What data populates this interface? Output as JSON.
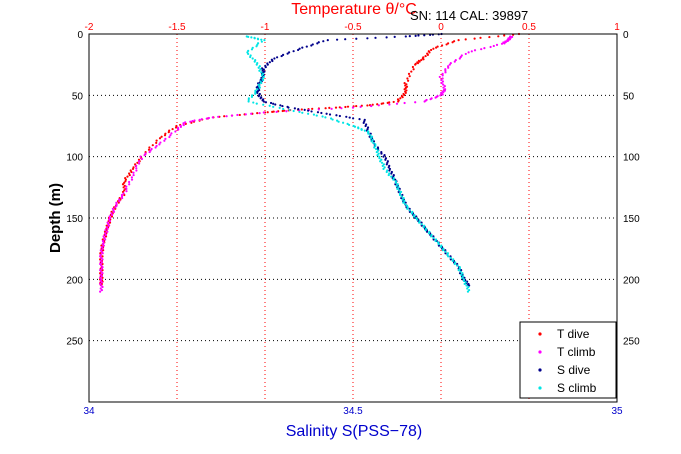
{
  "chart_data": {
    "type": "scatter",
    "top_axis": {
      "label": "Temperature θ/°C",
      "ticks": [
        "-2",
        "-1.5",
        "-1",
        "-0.5",
        "0",
        "0.5",
        "1"
      ],
      "range": [
        -2,
        1
      ],
      "color": "#ff0000"
    },
    "bottom_axis": {
      "label": "Salinity S(PSS−78)",
      "ticks": [
        "34",
        "34.5",
        "35"
      ],
      "range": [
        34,
        35
      ],
      "color": "#0000cc"
    },
    "y_axis": {
      "label": "Depth (m)",
      "ticks": [
        "0",
        "50",
        "100",
        "150",
        "200",
        "250"
      ],
      "range": [
        0,
        300
      ],
      "reversed": true
    },
    "info_text": "SN: 114  CAL: 39897",
    "grid": true,
    "legend_position": "bottom-right",
    "series": [
      {
        "name": "T dive",
        "axis": "temperature",
        "color": "#ff0000",
        "points": [
          [
            0.45,
            0
          ],
          [
            0.1,
            5
          ],
          [
            -0.05,
            12
          ],
          [
            -0.1,
            20
          ],
          [
            -0.15,
            25
          ],
          [
            -0.2,
            40
          ],
          [
            -0.2,
            48
          ],
          [
            -0.25,
            55
          ],
          [
            -0.4,
            58
          ],
          [
            -0.6,
            60
          ],
          [
            -0.85,
            62
          ],
          [
            -1.0,
            64
          ],
          [
            -1.3,
            68
          ],
          [
            -1.5,
            75
          ],
          [
            -1.6,
            85
          ],
          [
            -1.7,
            100
          ],
          [
            -1.75,
            110
          ],
          [
            -1.8,
            120
          ],
          [
            -1.8,
            130
          ],
          [
            -1.85,
            140
          ],
          [
            -1.88,
            150
          ],
          [
            -1.9,
            160
          ],
          [
            -1.92,
            170
          ],
          [
            -1.93,
            180
          ],
          [
            -1.93,
            190
          ],
          [
            -1.93,
            200
          ],
          [
            -1.93,
            205
          ]
        ]
      },
      {
        "name": "T climb",
        "axis": "temperature",
        "color": "#ff00ff",
        "points": [
          [
            -1.93,
            210
          ],
          [
            -1.93,
            200
          ],
          [
            -1.93,
            190
          ],
          [
            -1.93,
            180
          ],
          [
            -1.92,
            170
          ],
          [
            -1.9,
            160
          ],
          [
            -1.88,
            150
          ],
          [
            -1.85,
            140
          ],
          [
            -1.8,
            130
          ],
          [
            -1.75,
            115
          ],
          [
            -1.7,
            100
          ],
          [
            -1.6,
            90
          ],
          [
            -1.5,
            78
          ],
          [
            -1.45,
            72
          ],
          [
            -1.3,
            68
          ],
          [
            -1.0,
            64
          ],
          [
            -0.5,
            60
          ],
          [
            -0.1,
            55
          ],
          [
            0.0,
            50
          ],
          [
            0.02,
            45
          ],
          [
            0.0,
            35
          ],
          [
            0.05,
            25
          ],
          [
            0.15,
            15
          ],
          [
            0.35,
            8
          ],
          [
            0.38,
            5
          ],
          [
            0.4,
            2
          ]
        ]
      },
      {
        "name": "S dive",
        "axis": "salinity",
        "color": "#00008b",
        "points": [
          [
            34.67,
            0
          ],
          [
            34.6,
            2
          ],
          [
            34.45,
            5
          ],
          [
            34.4,
            12
          ],
          [
            34.35,
            20
          ],
          [
            34.33,
            28
          ],
          [
            34.33,
            35
          ],
          [
            34.32,
            42
          ],
          [
            34.32,
            48
          ],
          [
            34.33,
            55
          ],
          [
            34.38,
            60
          ],
          [
            34.45,
            65
          ],
          [
            34.52,
            70
          ],
          [
            34.53,
            80
          ],
          [
            34.54,
            90
          ],
          [
            34.56,
            100
          ],
          [
            34.57,
            110
          ],
          [
            34.58,
            120
          ],
          [
            34.59,
            130
          ],
          [
            34.6,
            140
          ],
          [
            34.62,
            150
          ],
          [
            34.64,
            160
          ],
          [
            34.66,
            170
          ],
          [
            34.68,
            180
          ],
          [
            34.7,
            190
          ],
          [
            34.71,
            200
          ],
          [
            34.72,
            205
          ]
        ]
      },
      {
        "name": "S climb",
        "axis": "salinity",
        "color": "#00e5e5",
        "points": [
          [
            34.72,
            210
          ],
          [
            34.71,
            200
          ],
          [
            34.7,
            190
          ],
          [
            34.68,
            180
          ],
          [
            34.66,
            170
          ],
          [
            34.64,
            160
          ],
          [
            34.62,
            150
          ],
          [
            34.6,
            140
          ],
          [
            34.59,
            130
          ],
          [
            34.58,
            120
          ],
          [
            34.56,
            110
          ],
          [
            34.55,
            100
          ],
          [
            34.54,
            90
          ],
          [
            34.53,
            80
          ],
          [
            34.5,
            75
          ],
          [
            34.45,
            68
          ],
          [
            34.38,
            62
          ],
          [
            34.3,
            55
          ],
          [
            34.32,
            45
          ],
          [
            34.33,
            35
          ],
          [
            34.32,
            25
          ],
          [
            34.3,
            15
          ],
          [
            34.33,
            5
          ],
          [
            34.3,
            2
          ]
        ]
      }
    ]
  }
}
